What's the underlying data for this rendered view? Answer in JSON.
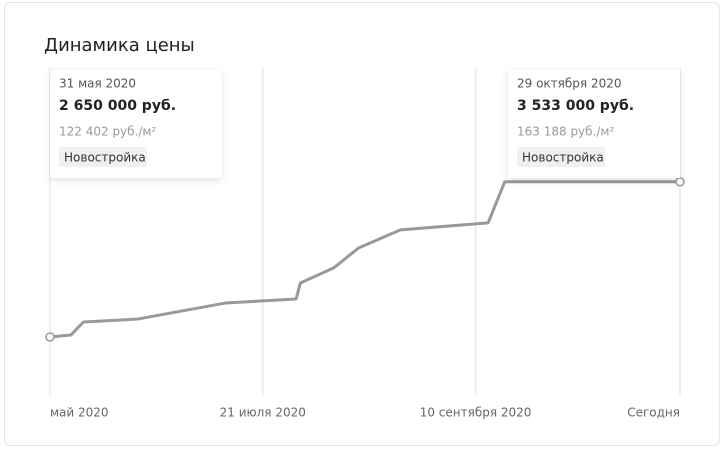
{
  "chart_data": {
    "type": "line",
    "title": "Динамика цены",
    "x": [
      "2020-05-31",
      "2020-06-05",
      "2020-06-08",
      "2020-06-21",
      "2020-07-12",
      "2020-07-29",
      "2020-07-30",
      "2020-08-07",
      "2020-08-13",
      "2020-08-23",
      "2020-09-13",
      "2020-09-17",
      "2020-10-29"
    ],
    "series": [
      {
        "color": "#999999",
        "values": [
          2650000,
          2661000,
          2735000,
          2752000,
          2843000,
          2866000,
          2957000,
          3043000,
          3157000,
          3259000,
          3299000,
          3533000,
          3533000
        ],
        "value_labels": [
          "2 650 000 руб.",
          null,
          null,
          null,
          null,
          null,
          null,
          null,
          null,
          null,
          null,
          null,
          "3 533 000 руб."
        ]
      }
    ],
    "xlim": [
      "2020-05-31",
      "2020-10-29"
    ],
    "xticks": [
      {
        "value": "2020-05-31",
        "label": "май 2020"
      },
      {
        "value": "2020-07-21",
        "label": "21 июля 2020"
      },
      {
        "value": "2020-09-10",
        "label": "10 сентября 2020"
      },
      {
        "value": "2020-10-29",
        "label": "Сегодня"
      }
    ],
    "ylim": [
      2320000,
      4180000
    ],
    "grid": true,
    "tooltips": [
      {
        "date": "31 мая 2020",
        "price_per_m2": "122 402 руб./м²",
        "tag": "Новостройка"
      },
      {
        "date": "29 октября 2020",
        "price_per_m2": "163 188 руб./м²",
        "tag": "Новостройка"
      }
    ]
  }
}
